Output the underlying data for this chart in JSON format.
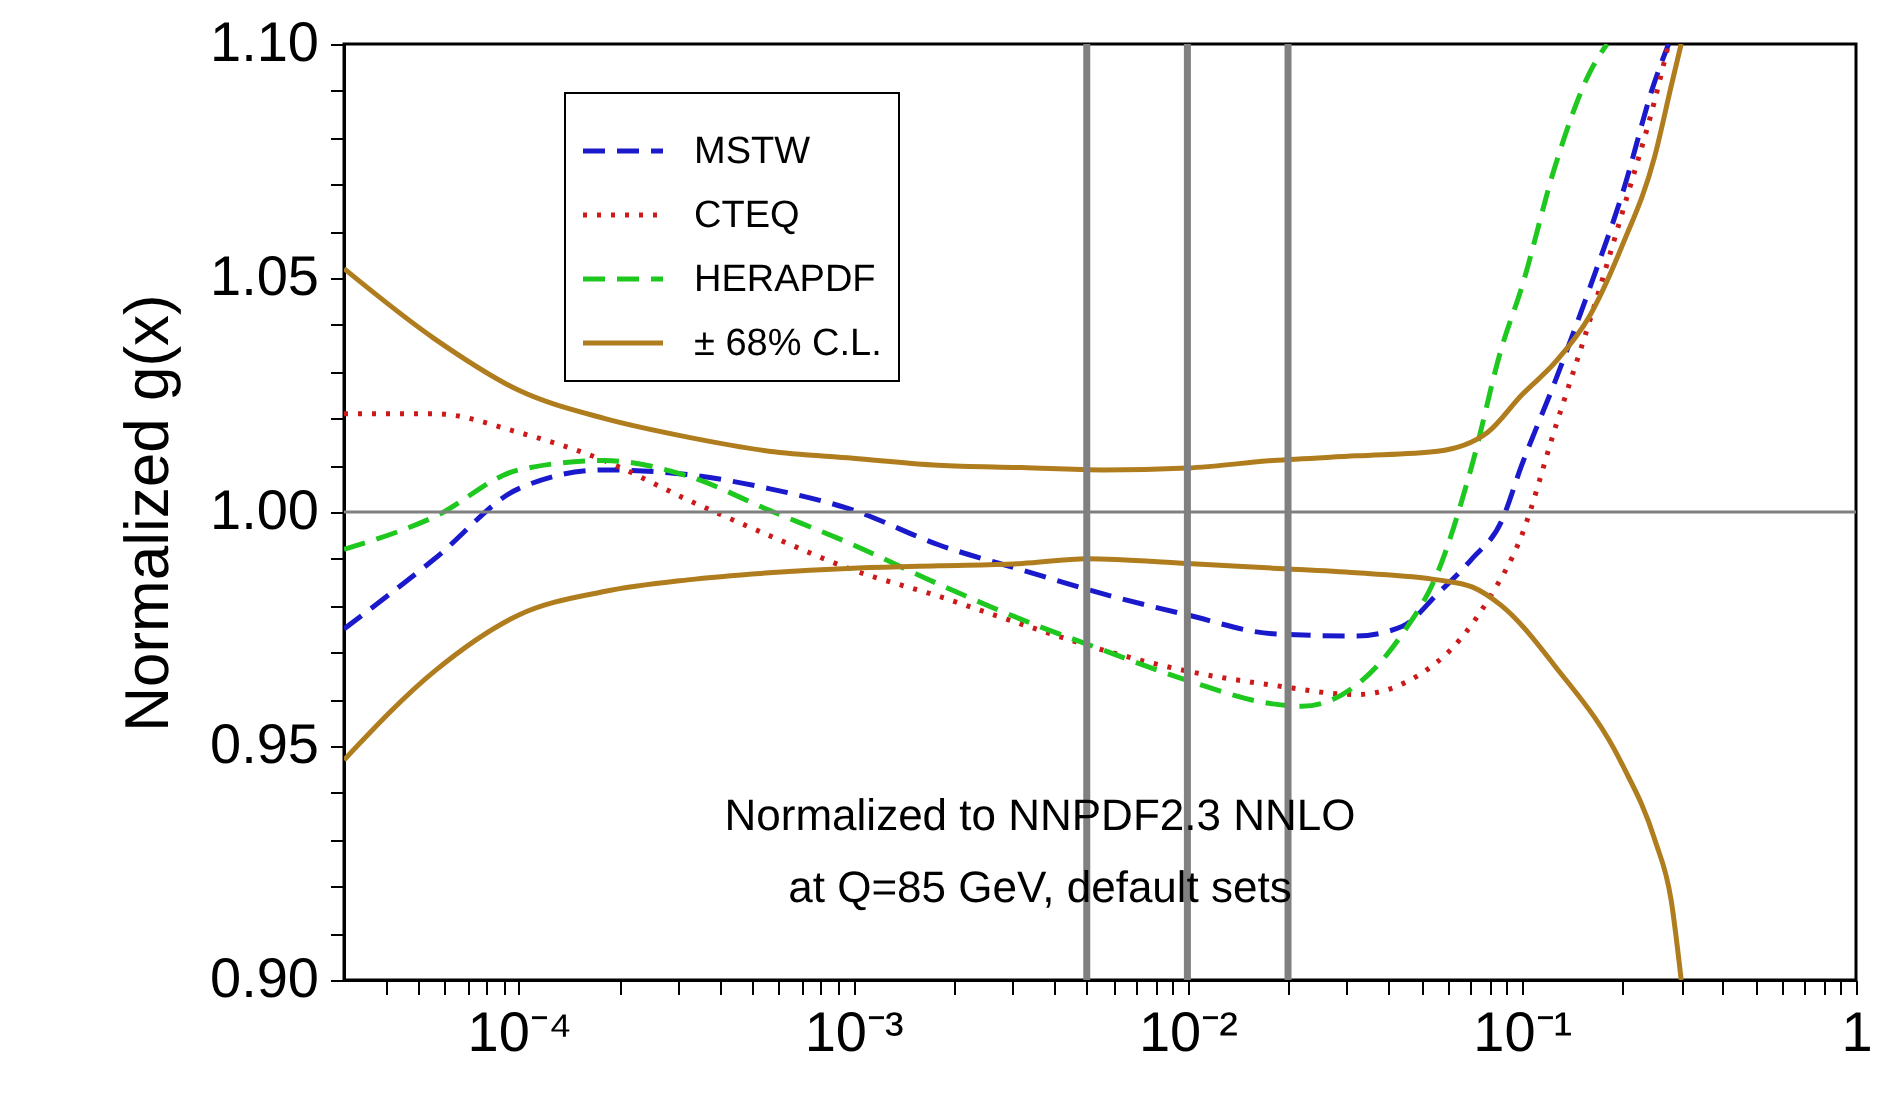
{
  "chart_data": {
    "type": "line",
    "ylabel": "Normalized g(x)",
    "log": "x",
    "legend": "top left",
    "xlim": [
      3e-05,
      1
    ],
    "ylim": [
      0.9,
      1.1
    ],
    "xticks": [
      {
        "value": 4e-05,
        "label": null
      },
      {
        "value": 5e-05,
        "label": null
      },
      {
        "value": 6e-05,
        "label": null
      },
      {
        "value": 7e-05,
        "label": null
      },
      {
        "value": 8e-05,
        "label": null
      },
      {
        "value": 9e-05,
        "label": null
      },
      {
        "value": 0.0001,
        "label": "10⁻⁴"
      },
      {
        "value": 0.0002,
        "label": null
      },
      {
        "value": 0.0003,
        "label": null
      },
      {
        "value": 0.0004,
        "label": null
      },
      {
        "value": 0.0005,
        "label": null
      },
      {
        "value": 0.0006,
        "label": null
      },
      {
        "value": 0.0007,
        "label": null
      },
      {
        "value": 0.0008,
        "label": null
      },
      {
        "value": 0.0009,
        "label": null
      },
      {
        "value": 0.001,
        "label": "10⁻³"
      },
      {
        "value": 0.002,
        "label": null
      },
      {
        "value": 0.003,
        "label": null
      },
      {
        "value": 0.004,
        "label": null
      },
      {
        "value": 0.005,
        "label": null
      },
      {
        "value": 0.006,
        "label": null
      },
      {
        "value": 0.007,
        "label": null
      },
      {
        "value": 0.008,
        "label": null
      },
      {
        "value": 0.009,
        "label": null
      },
      {
        "value": 0.01,
        "label": "10⁻²"
      },
      {
        "value": 0.02,
        "label": null
      },
      {
        "value": 0.03,
        "label": null
      },
      {
        "value": 0.04,
        "label": null
      },
      {
        "value": 0.05,
        "label": null
      },
      {
        "value": 0.06,
        "label": null
      },
      {
        "value": 0.07,
        "label": null
      },
      {
        "value": 0.08,
        "label": null
      },
      {
        "value": 0.09,
        "label": null
      },
      {
        "value": 0.1,
        "label": "10⁻¹"
      },
      {
        "value": 0.2,
        "label": null
      },
      {
        "value": 0.3,
        "label": null
      },
      {
        "value": 0.4,
        "label": null
      },
      {
        "value": 0.5,
        "label": null
      },
      {
        "value": 0.6,
        "label": null
      },
      {
        "value": 0.7,
        "label": null
      },
      {
        "value": 0.8,
        "label": null
      },
      {
        "value": 0.9,
        "label": null
      },
      1
    ],
    "yticks": [
      {
        "value": 0.9,
        "label": "0.90"
      },
      {
        "value": 0.91,
        "label": null
      },
      {
        "value": 0.92,
        "label": null
      },
      {
        "value": 0.93,
        "label": null
      },
      {
        "value": 0.94,
        "label": null
      },
      0.95,
      {
        "value": 0.96,
        "label": null
      },
      {
        "value": 0.97,
        "label": null
      },
      {
        "value": 0.98,
        "label": null
      },
      {
        "value": 0.99,
        "label": null
      },
      {
        "value": 1.0,
        "label": "1.00"
      },
      {
        "value": 1.01,
        "label": null
      },
      {
        "value": 1.02,
        "label": null
      },
      {
        "value": 1.03,
        "label": null
      },
      {
        "value": 1.04,
        "label": null
      },
      1.05,
      {
        "value": 1.06,
        "label": null
      },
      {
        "value": 1.07,
        "label": null
      },
      {
        "value": 1.08,
        "label": null
      },
      {
        "value": 1.09,
        "label": null
      },
      {
        "value": 1.1,
        "label": "1.10"
      }
    ],
    "series": [
      {
        "name": "MSTW",
        "color": "#1a1acc",
        "line_style": "dashed",
        "x": [
          3e-05,
          5.6e-05,
          0.0001,
          0.00018,
          0.00032,
          0.00056,
          0.001,
          0.0018,
          0.0032,
          0.0056,
          0.01,
          0.018,
          0.032,
          0.044,
          0.056,
          0.071,
          0.087,
          0.1,
          0.126,
          0.16,
          0.2,
          0.25,
          0.275
        ],
        "values": [
          0.975,
          0.99,
          1.005,
          1.009,
          1.008,
          1.005,
          1.0004,
          0.993,
          0.9876,
          0.9825,
          0.978,
          0.974,
          0.9735,
          0.9756,
          0.9825,
          0.99,
          0.998,
          1.01,
          1.028,
          1.048,
          1.068,
          1.092,
          1.1
        ]
      },
      {
        "name": "CTEQ",
        "color": "#cc1a1a",
        "line_style": "dotted",
        "x": [
          3e-05,
          5.6e-05,
          0.0001,
          0.00018,
          0.00032,
          0.00056,
          0.001,
          0.0018,
          0.0032,
          0.0056,
          0.01,
          0.018,
          0.032,
          0.056,
          0.079,
          0.1,
          0.126,
          0.16,
          0.2,
          0.25,
          0.275
        ],
        "values": [
          1.021,
          1.021,
          1.017,
          1.011,
          1.0026,
          0.995,
          0.9876,
          0.982,
          0.976,
          0.9705,
          0.966,
          0.963,
          0.961,
          0.968,
          0.981,
          0.995,
          1.018,
          1.041,
          1.064,
          1.088,
          1.1
        ]
      },
      {
        "name": "HERAPDF",
        "color": "#1ec81e",
        "line_style": "dashed",
        "x": [
          3e-05,
          5.6e-05,
          0.0001,
          0.00018,
          0.00032,
          0.00056,
          0.001,
          0.0018,
          0.0032,
          0.0056,
          0.01,
          0.018,
          0.022,
          0.032,
          0.044,
          0.056,
          0.071,
          0.087,
          0.1,
          0.126,
          0.16,
          0.18
        ],
        "values": [
          0.992,
          0.999,
          1.009,
          1.011,
          1.0077,
          1.0004,
          0.993,
          0.9846,
          0.977,
          0.9705,
          0.964,
          0.959,
          0.9585,
          0.963,
          0.974,
          0.987,
          1.01,
          1.035,
          1.048,
          1.074,
          1.094,
          1.1
        ]
      },
      {
        "name": "± 68% C.L.",
        "color": "#b07d1e",
        "line_style": "solid",
        "x": [
          3e-05,
          5.6e-05,
          0.0001,
          0.00018,
          0.00032,
          0.00056,
          0.001,
          0.0018,
          0.0032,
          0.0056,
          0.01,
          0.018,
          0.032,
          0.056,
          0.079,
          0.1,
          0.126,
          0.16,
          0.2,
          0.25,
          0.28,
          0.3
        ],
        "values": [
          1.052,
          1.037,
          1.026,
          1.02,
          1.016,
          1.013,
          1.0115,
          1.01,
          1.0095,
          1.009,
          1.0094,
          1.011,
          1.012,
          1.013,
          1.017,
          1.025,
          1.032,
          1.042,
          1.057,
          1.076,
          1.091,
          1.1
        ]
      },
      {
        "color": "#b07d1e",
        "line_style": "solid",
        "x": [
          3e-05,
          5.6e-05,
          0.0001,
          0.00018,
          0.00032,
          0.00056,
          0.001,
          0.0018,
          0.0032,
          0.005,
          0.01,
          0.018,
          0.032,
          0.056,
          0.071,
          0.087,
          0.126,
          0.2,
          0.25,
          0.28,
          0.3
        ],
        "values": [
          0.947,
          0.966,
          0.978,
          0.983,
          0.9855,
          0.987,
          0.988,
          0.9885,
          0.989,
          0.99,
          0.989,
          0.988,
          0.987,
          0.9855,
          0.984,
          0.98,
          0.967,
          0.946,
          0.93,
          0.917,
          0.9
        ]
      }
    ],
    "ref_lines": [
      {
        "axis": "y",
        "value": 1.0,
        "color": "#808080"
      },
      {
        "axis": "x",
        "value": 0.005,
        "color": "#808080"
      },
      {
        "axis": "x",
        "value": 0.01,
        "color": "#808080"
      },
      {
        "axis": "x",
        "value": 0.02,
        "color": "#808080"
      }
    ],
    "annotations": [
      "Normalized to NNPDF2.3 NNLO",
      "at Q=85 GeV, default sets"
    ]
  }
}
